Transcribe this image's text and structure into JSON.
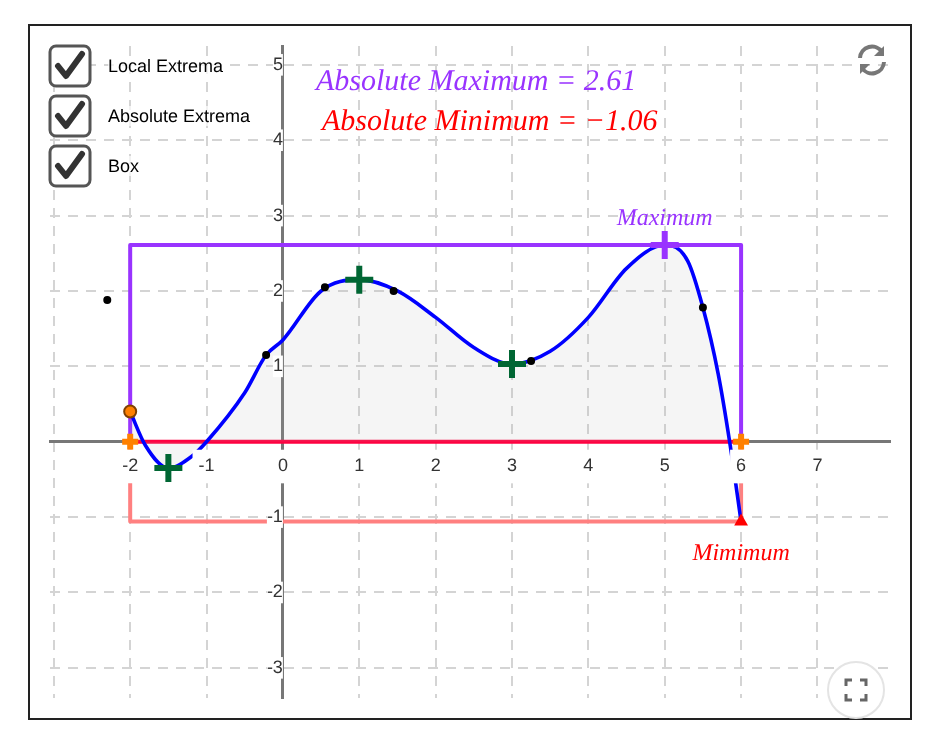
{
  "chart_data": {
    "type": "line",
    "xlim": [
      -3.05,
      7.95
    ],
    "ylim": [
      -3.4,
      5.25
    ],
    "xticks": [
      {
        "value": -3,
        "label": null
      },
      -2,
      -1,
      0,
      1,
      2,
      3,
      4,
      5,
      6,
      7
    ],
    "yticks": [
      -3,
      -2,
      -1,
      1,
      2,
      3,
      4,
      5
    ],
    "grid": true,
    "legend": false,
    "annotations": [
      "Local Extrema",
      "Absolute Extrema",
      "Box",
      "Absolute Maximum = 2.61",
      "Absolute Minimum = −1.06",
      {
        "text": "Maximum",
        "x": 5,
        "y": 2.61
      },
      {
        "text": "Mimimum",
        "x": 6,
        "y": -1.06
      }
    ],
    "series": [
      {
        "type": "area",
        "color": "#0000ff",
        "marker": "none",
        "x": [
          -2,
          -1.8,
          -1.5,
          -1.2,
          -1,
          -0.5,
          -0.22,
          0,
          0.5,
          1,
          1.5,
          2,
          2.5,
          3,
          3.5,
          4,
          4.5,
          5,
          5.3,
          5.5,
          5.7,
          5.85,
          6
        ],
        "values": [
          0.4,
          -0.05,
          -0.35,
          -0.2,
          0,
          0.65,
          1.15,
          1.35,
          2,
          2.15,
          2,
          1.65,
          1.25,
          1.03,
          1.2,
          1.65,
          2.3,
          2.61,
          2.4,
          1.78,
          0.9,
          0,
          -1.06
        ]
      },
      {
        "type": "scatter",
        "color": "#006633",
        "marker": "cross",
        "x": [
          -1.5,
          1,
          3
        ],
        "values": [
          -0.35,
          2.15,
          1.03
        ]
      },
      {
        "type": "scatter",
        "color": "#9933ff",
        "marker": "cross",
        "x": [
          5
        ],
        "values": [
          2.61
        ]
      },
      {
        "type": "scatter",
        "color": "#ff0000",
        "marker": "triangle",
        "x": [
          6
        ],
        "values": [
          -1.06
        ]
      },
      {
        "type": "line",
        "color": "#9933ff",
        "marker": "none",
        "x": [
          -2,
          -2,
          6,
          6
        ],
        "values": [
          0,
          2.61,
          2.61,
          0
        ]
      },
      {
        "type": "line",
        "color": "#ff8080",
        "marker": "none",
        "x": [
          -2,
          -2,
          6,
          6
        ],
        "values": [
          0,
          -1.06,
          -1.06,
          0
        ]
      },
      {
        "type": "line",
        "color": "#ff0040",
        "marker": "none",
        "x": [
          -2,
          6
        ],
        "values": [
          0,
          0
        ]
      },
      {
        "type": "scatter",
        "color": "#ff8000",
        "marker": "circle",
        "x": [
          -2
        ],
        "values": [
          0.4
        ]
      },
      {
        "type": "scatter",
        "color": "#ff8000",
        "marker": "cross",
        "x": [
          -2,
          6
        ],
        "values": [
          0,
          0
        ]
      },
      {
        "type": "scatter",
        "color": "#000000",
        "marker": "circle",
        "x": [
          -2.3,
          -0.22,
          0.55,
          1.45,
          3.25,
          5.5
        ],
        "values": [
          1.88,
          1.15,
          2.05,
          2,
          1.07,
          1.78
        ]
      }
    ]
  }
}
